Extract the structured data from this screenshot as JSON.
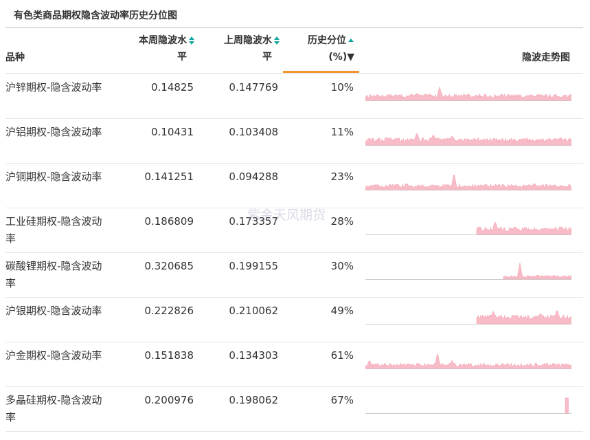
{
  "title": "有色类商品期权隐含波动率历史分位图",
  "headers": {
    "name": "品种",
    "current_line1": "本周隐波水",
    "current_line2": "平",
    "previous_line1": "上周隐波水",
    "previous_line2": "平",
    "percentile_line1": "历史分位",
    "percentile_line2": "(%)▼",
    "trend": "隐波走势图"
  },
  "watermark": "紫金天风期货",
  "colors": {
    "accent": "#f0952c",
    "sort_teal": "#13a89e",
    "spark_fill": "#f7bcc7",
    "spark_stroke": "#f4a3b2",
    "baseline": "#cccccc"
  },
  "icons": {
    "sort": "sort-updown-icon",
    "sort_active": "sort-up-icon"
  },
  "chart_data": {
    "type": "table",
    "columns": [
      "品种",
      "本周隐波水平",
      "上周隐波水平",
      "历史分位(%)",
      "隐波走势图"
    ],
    "rows": [
      {
        "name": "沪锌期权-隐含波动率",
        "current": "0.14825",
        "previous": "0.147769",
        "percentile": "10%",
        "trend": {
          "start": 0.0,
          "end": 1.0,
          "level": 0.25,
          "var": 0.1,
          "peaks": [
            [
              0.36,
              0.75
            ],
            [
              0.25,
              0.4
            ],
            [
              0.5,
              0.35
            ]
          ]
        }
      },
      {
        "name": "沪铝期权-隐含波动率",
        "current": "0.10431",
        "previous": "0.103408",
        "percentile": "11%",
        "trend": {
          "start": 0.0,
          "end": 1.0,
          "level": 0.3,
          "var": 0.12,
          "peaks": [
            [
              0.25,
              0.7
            ],
            [
              0.33,
              0.6
            ],
            [
              0.42,
              0.5
            ],
            [
              0.12,
              0.4
            ]
          ]
        }
      },
      {
        "name": "沪铜期权-隐含波动率",
        "current": "0.141251",
        "previous": "0.094288",
        "percentile": "23%",
        "trend": {
          "start": 0.0,
          "end": 1.0,
          "level": 0.22,
          "var": 0.1,
          "peaks": [
            [
              0.43,
              0.95
            ],
            [
              0.82,
              0.35
            ],
            [
              0.2,
              0.35
            ]
          ]
        }
      },
      {
        "name": "工业硅期权-隐含波动率",
        "current": "0.186809",
        "previous": "0.173357",
        "percentile": "28%",
        "trend": {
          "start": 0.54,
          "end": 1.0,
          "level": 0.3,
          "var": 0.12,
          "peaks": [
            [
              0.63,
              0.75
            ],
            [
              0.95,
              0.45
            ]
          ]
        }
      },
      {
        "name": "碳酸锂期权-隐含波动率",
        "current": "0.320685",
        "previous": "0.199155",
        "percentile": "30%",
        "trend": {
          "start": 0.67,
          "end": 1.0,
          "level": 0.15,
          "var": 0.07,
          "peaks": [
            [
              0.75,
              0.95
            ]
          ]
        }
      },
      {
        "name": "沪银期权-隐含波动率",
        "current": "0.222826",
        "previous": "0.210062",
        "percentile": "49%",
        "trend": {
          "start": 0.54,
          "end": 1.0,
          "level": 0.38,
          "var": 0.12,
          "peaks": [
            [
              0.62,
              0.7
            ],
            [
              0.93,
              0.8
            ],
            [
              0.85,
              0.6
            ]
          ]
        }
      },
      {
        "name": "沪金期权-隐含波动率",
        "current": "0.151838",
        "previous": "0.134303",
        "percentile": "61%",
        "trend": {
          "start": 0.0,
          "end": 1.0,
          "level": 0.2,
          "var": 0.1,
          "peaks": [
            [
              0.35,
              0.9
            ],
            [
              0.02,
              0.45
            ],
            [
              0.42,
              0.45
            ]
          ]
        }
      },
      {
        "name": "多晶硅期权-隐含波动率",
        "current": "0.200976",
        "previous": "0.198062",
        "percentile": "67%",
        "trend": {
          "start": 0.97,
          "end": 0.985,
          "level": 0.85,
          "var": 0.0,
          "peaks": []
        }
      }
    ]
  }
}
